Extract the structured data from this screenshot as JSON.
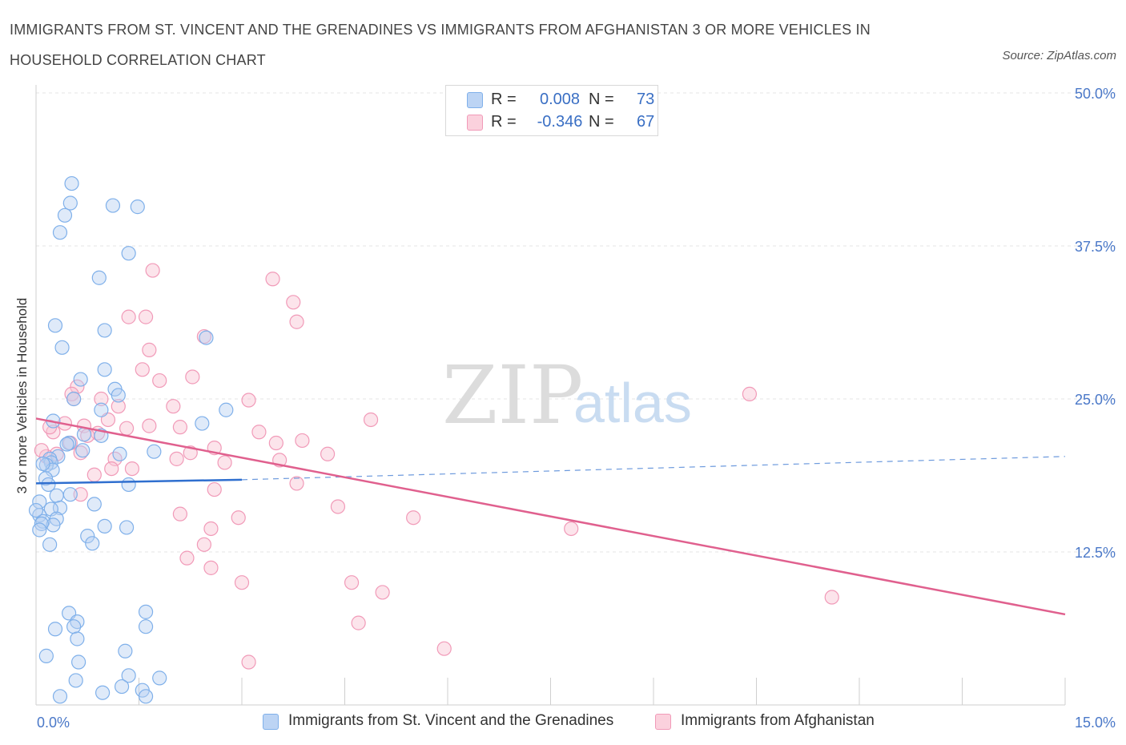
{
  "header": {
    "title": "IMMIGRANTS FROM ST. VINCENT AND THE GRENADINES VS IMMIGRANTS FROM AFGHANISTAN 3 OR MORE VEHICLES IN HOUSEHOLD CORRELATION CHART",
    "source": "Source: ZipAtlas.com"
  },
  "watermark": {
    "zip": "ZIP",
    "atlas": "atlas"
  },
  "legend": {
    "rows": [
      {
        "r_label": "R =",
        "r_value": "0.008",
        "n_label": "N =",
        "n_value": "73",
        "color": "#a9c8f0"
      },
      {
        "r_label": "R =",
        "r_value": "-0.346",
        "n_label": "N =",
        "n_value": "67",
        "color": "#f6b8cb"
      }
    ]
  },
  "bottom_legend": {
    "series1": "Immigrants from St. Vincent and the Grenadines",
    "series2": "Immigrants from Afghanistan"
  },
  "chart_data": {
    "type": "scatter",
    "title": "IMMIGRANTS FROM ST. VINCENT AND THE GRENADINES VS IMMIGRANTS FROM AFGHANISTAN 3 OR MORE VEHICLES IN HOUSEHOLD CORRELATION CHART",
    "xlabel": "",
    "ylabel": "3 or more Vehicles in Household",
    "xlim": [
      0,
      15
    ],
    "ylim": [
      0,
      50
    ],
    "x_tick_labels": [
      "0.0%",
      "15.0%"
    ],
    "y_ticks": [
      12.5,
      25.0,
      37.5,
      50.0
    ],
    "y_tick_labels": [
      "12.5%",
      "25.0%",
      "37.5%",
      "50.0%"
    ],
    "grid": true,
    "colors": {
      "blue": "#7fb0ea",
      "pink": "#f19ab8",
      "blue_line": "#2f6fcf",
      "pink_line": "#e0608e"
    },
    "series": [
      {
        "name": "Immigrants from St. Vincent and the Grenadines",
        "color": "blue",
        "points": [
          [
            0.52,
            42.6
          ],
          [
            0.5,
            41.0
          ],
          [
            0.42,
            40.0
          ],
          [
            0.35,
            38.6
          ],
          [
            1.12,
            40.8
          ],
          [
            1.48,
            40.7
          ],
          [
            1.35,
            36.9
          ],
          [
            0.92,
            34.9
          ],
          [
            0.28,
            31.0
          ],
          [
            0.38,
            29.2
          ],
          [
            1.0,
            30.6
          ],
          [
            2.48,
            30.0
          ],
          [
            0.65,
            26.6
          ],
          [
            1.0,
            27.4
          ],
          [
            0.55,
            25.0
          ],
          [
            1.15,
            25.8
          ],
          [
            1.2,
            25.3
          ],
          [
            2.77,
            24.1
          ],
          [
            0.95,
            24.1
          ],
          [
            0.25,
            23.2
          ],
          [
            2.42,
            23.0
          ],
          [
            0.7,
            22.1
          ],
          [
            0.48,
            21.4
          ],
          [
            0.45,
            21.3
          ],
          [
            0.32,
            20.3
          ],
          [
            0.68,
            20.8
          ],
          [
            1.22,
            20.5
          ],
          [
            1.72,
            20.7
          ],
          [
            0.2,
            20.1
          ],
          [
            0.22,
            19.8
          ],
          [
            0.15,
            19.6
          ],
          [
            0.24,
            19.2
          ],
          [
            0.14,
            18.5
          ],
          [
            0.18,
            18.0
          ],
          [
            1.35,
            18.0
          ],
          [
            0.3,
            17.1
          ],
          [
            0.5,
            17.2
          ],
          [
            0.85,
            16.4
          ],
          [
            0.35,
            16.1
          ],
          [
            0.05,
            16.6
          ],
          [
            0.22,
            16.0
          ],
          [
            0.05,
            15.5
          ],
          [
            0.1,
            15.0
          ],
          [
            0.3,
            15.2
          ],
          [
            0.25,
            14.7
          ],
          [
            0.08,
            14.8
          ],
          [
            0.05,
            14.3
          ],
          [
            1.0,
            14.6
          ],
          [
            1.32,
            14.5
          ],
          [
            0.75,
            13.8
          ],
          [
            0.82,
            13.2
          ],
          [
            0.2,
            13.1
          ],
          [
            0.48,
            7.5
          ],
          [
            0.6,
            6.8
          ],
          [
            0.55,
            6.4
          ],
          [
            0.28,
            6.2
          ],
          [
            1.6,
            7.6
          ],
          [
            1.6,
            6.4
          ],
          [
            0.6,
            5.4
          ],
          [
            1.3,
            4.4
          ],
          [
            0.15,
            4.0
          ],
          [
            0.62,
            3.5
          ],
          [
            1.35,
            2.4
          ],
          [
            1.8,
            2.2
          ],
          [
            0.58,
            2.0
          ],
          [
            1.25,
            1.5
          ],
          [
            1.55,
            1.2
          ],
          [
            0.97,
            1.0
          ],
          [
            0.35,
            0.7
          ],
          [
            1.6,
            0.7
          ],
          [
            0.0,
            15.9
          ],
          [
            0.95,
            22.0
          ],
          [
            0.1,
            19.7
          ]
        ]
      },
      {
        "name": "Immigrants from Afghanistan",
        "color": "pink",
        "points": [
          [
            1.7,
            35.5
          ],
          [
            3.45,
            34.8
          ],
          [
            1.35,
            31.7
          ],
          [
            1.6,
            31.7
          ],
          [
            3.75,
            32.9
          ],
          [
            3.8,
            31.3
          ],
          [
            2.45,
            30.1
          ],
          [
            1.65,
            29.0
          ],
          [
            1.55,
            27.4
          ],
          [
            2.28,
            26.8
          ],
          [
            1.8,
            26.5
          ],
          [
            0.6,
            26.0
          ],
          [
            0.52,
            25.4
          ],
          [
            0.55,
            25.0
          ],
          [
            0.95,
            25.0
          ],
          [
            1.2,
            24.4
          ],
          [
            2.0,
            24.4
          ],
          [
            3.1,
            24.9
          ],
          [
            1.05,
            23.3
          ],
          [
            0.42,
            23.0
          ],
          [
            0.7,
            22.8
          ],
          [
            1.32,
            22.6
          ],
          [
            1.65,
            22.8
          ],
          [
            2.1,
            22.7
          ],
          [
            0.9,
            22.2
          ],
          [
            0.75,
            22.0
          ],
          [
            0.25,
            22.3
          ],
          [
            0.5,
            21.4
          ],
          [
            3.25,
            22.3
          ],
          [
            3.5,
            21.4
          ],
          [
            3.88,
            21.6
          ],
          [
            2.6,
            21.0
          ],
          [
            0.65,
            20.6
          ],
          [
            2.25,
            20.6
          ],
          [
            0.3,
            20.5
          ],
          [
            0.15,
            20.3
          ],
          [
            1.15,
            20.1
          ],
          [
            0.08,
            20.8
          ],
          [
            4.25,
            20.5
          ],
          [
            4.88,
            23.3
          ],
          [
            2.05,
            20.1
          ],
          [
            3.55,
            20.0
          ],
          [
            2.75,
            19.8
          ],
          [
            1.4,
            19.3
          ],
          [
            1.1,
            19.3
          ],
          [
            0.85,
            18.8
          ],
          [
            3.8,
            18.1
          ],
          [
            2.6,
            17.6
          ],
          [
            0.65,
            17.2
          ],
          [
            4.4,
            16.2
          ],
          [
            2.1,
            15.6
          ],
          [
            2.95,
            15.3
          ],
          [
            5.5,
            15.3
          ],
          [
            2.55,
            14.4
          ],
          [
            7.8,
            14.4
          ],
          [
            2.45,
            13.1
          ],
          [
            2.2,
            12.0
          ],
          [
            2.55,
            11.2
          ],
          [
            3.0,
            10.0
          ],
          [
            4.6,
            10.0
          ],
          [
            5.05,
            9.2
          ],
          [
            11.6,
            8.8
          ],
          [
            10.4,
            25.4
          ],
          [
            4.7,
            6.7
          ],
          [
            5.95,
            4.6
          ],
          [
            3.1,
            3.5
          ],
          [
            0.2,
            22.7
          ]
        ]
      }
    ],
    "trend_lines": [
      {
        "series": "Immigrants from St. Vincent and the Grenadines",
        "solid": [
          [
            0.0,
            18.1
          ],
          [
            3.0,
            18.4
          ]
        ],
        "dashed": [
          [
            3.0,
            18.4
          ],
          [
            15.0,
            20.3
          ]
        ]
      },
      {
        "series": "Immigrants from Afghanistan",
        "solid": [
          [
            0.0,
            23.4
          ],
          [
            15.0,
            7.4
          ]
        ]
      }
    ]
  }
}
